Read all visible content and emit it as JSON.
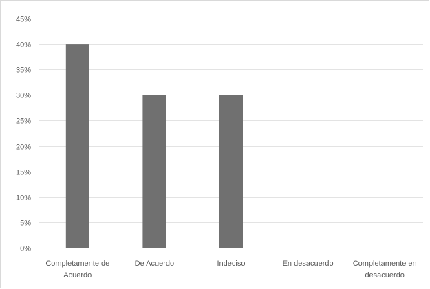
{
  "chart_data": {
    "type": "bar",
    "categories": [
      [
        "Completamente de",
        "Acuerdo"
      ],
      [
        "De Acuerdo"
      ],
      [
        "Indeciso"
      ],
      [
        "En desacuerdo"
      ],
      [
        "Completamente en",
        "desacuerdo"
      ]
    ],
    "values": [
      40,
      30,
      30,
      0,
      0
    ],
    "ylim": [
      0,
      45
    ],
    "yticks": [
      0,
      5,
      10,
      15,
      20,
      25,
      30,
      35,
      40,
      45
    ],
    "ytick_suffix": "%",
    "grid": true,
    "legend": "none",
    "bar_color": "#707070",
    "grid_color": "#e3e3e3",
    "label_color": "#595959"
  }
}
